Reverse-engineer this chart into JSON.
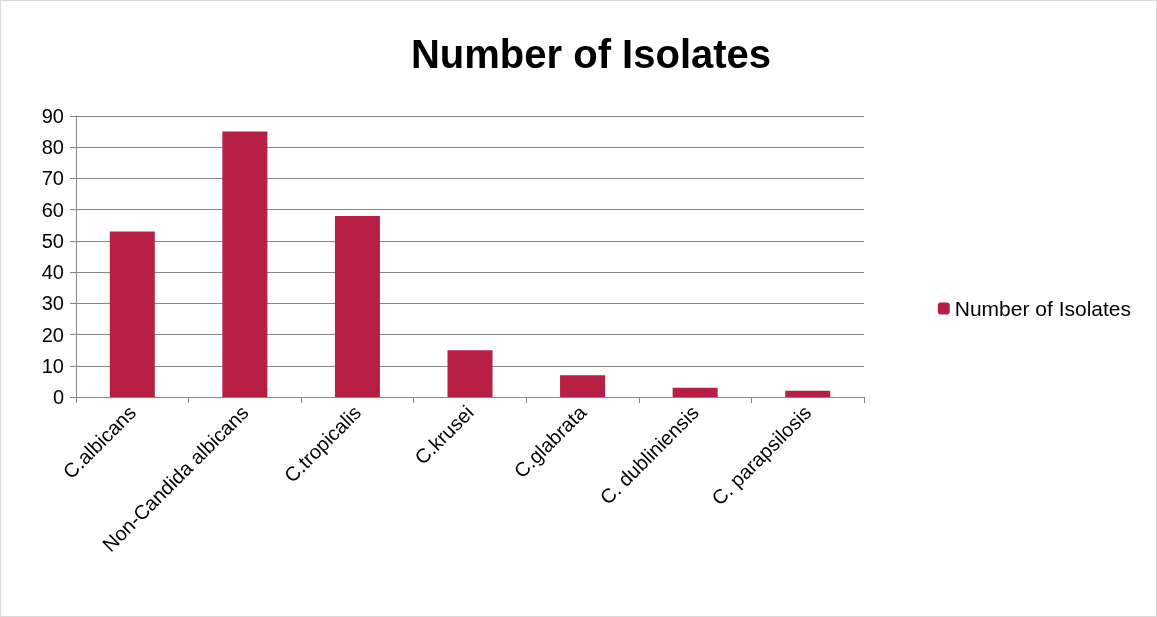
{
  "chart_data": {
    "type": "bar",
    "title": "Number of Isolates",
    "categories": [
      "C.albicans",
      "Non-Candida albicans",
      "C.tropicalis",
      "C.krusei",
      "C.glabrata",
      "C. dubliniensis",
      "C. parapsilosis"
    ],
    "series": [
      {
        "name": "Number of Isolates",
        "color": "#b71f44",
        "values": [
          53,
          85,
          58,
          15,
          7,
          3,
          2
        ]
      }
    ],
    "ylim": [
      0,
      90
    ],
    "yticks": [
      0,
      10,
      20,
      30,
      40,
      50,
      60,
      70,
      80,
      90
    ],
    "grid": "y",
    "legend": "right"
  }
}
